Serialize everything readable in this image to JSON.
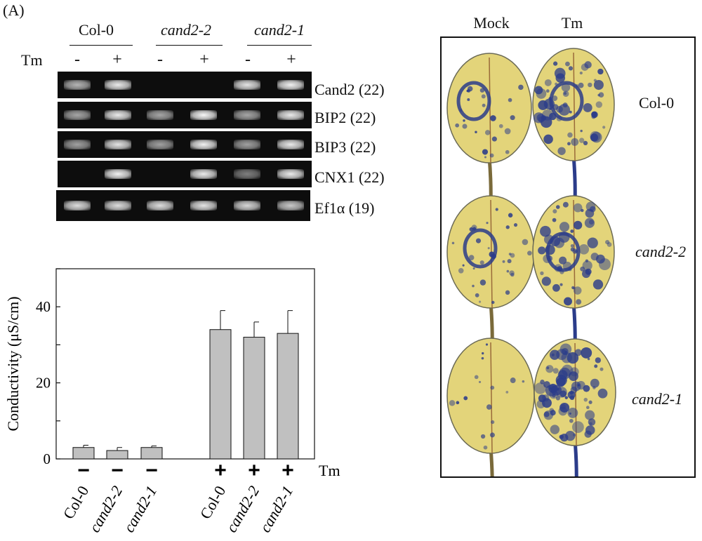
{
  "panel_label": "(A)",
  "genotype_headers": [
    {
      "text": "Col-0",
      "italic": false
    },
    {
      "text": "cand2-2",
      "italic": true
    },
    {
      "text": "cand2-1",
      "italic": true
    }
  ],
  "treatment_label": "Tm",
  "treatment_signs": [
    "-",
    "+",
    "-",
    "+",
    "-",
    "+"
  ],
  "gel_rows": [
    {
      "label": "Cand2 (22)",
      "intensities": [
        0.45,
        0.85,
        0.0,
        0.0,
        0.8,
        0.9
      ]
    },
    {
      "label": "BIP2 (22)",
      "intensities": [
        0.35,
        0.85,
        0.35,
        0.95,
        0.35,
        0.85
      ]
    },
    {
      "label": "BIP3 (22)",
      "intensities": [
        0.3,
        0.8,
        0.3,
        0.9,
        0.3,
        0.85
      ]
    },
    {
      "label": "CNX1 (22)",
      "intensities": [
        0.0,
        0.9,
        0.0,
        0.85,
        0.05,
        0.85
      ]
    },
    {
      "label": "Ef1α (19)",
      "intensities": [
        0.75,
        0.75,
        0.75,
        0.8,
        0.7,
        0.6
      ]
    }
  ],
  "chart_data": {
    "type": "bar",
    "ylabel": "Conductivity (μS/cm)",
    "ylim": [
      0,
      50
    ],
    "yticks": [
      "0",
      "20",
      "40"
    ],
    "categories": [
      "Col-0",
      "cand2-2",
      "cand2-1",
      "Col-0",
      "cand2-2",
      "cand2-1"
    ],
    "category_italic": [
      false,
      true,
      true,
      false,
      true,
      true
    ],
    "treatment": [
      "−",
      "−",
      "−",
      "+",
      "+",
      "+"
    ],
    "treatment_axis_label": "Tm",
    "values": [
      3.0,
      2.2,
      3.0,
      34,
      32,
      33
    ],
    "errors": [
      0.6,
      0.8,
      0.4,
      5,
      4,
      6
    ],
    "bar_color": "#c0c0c0",
    "grid": false
  },
  "leaf_panel": {
    "column_headers": [
      "Mock",
      "Tm"
    ],
    "row_labels": [
      {
        "text": "Col-0",
        "italic": false
      },
      {
        "text": "cand2-2",
        "italic": true
      },
      {
        "text": "cand2-1",
        "italic": true
      }
    ],
    "leaf_color": "#e3d47a",
    "stain_color": "#2b3c8a"
  }
}
